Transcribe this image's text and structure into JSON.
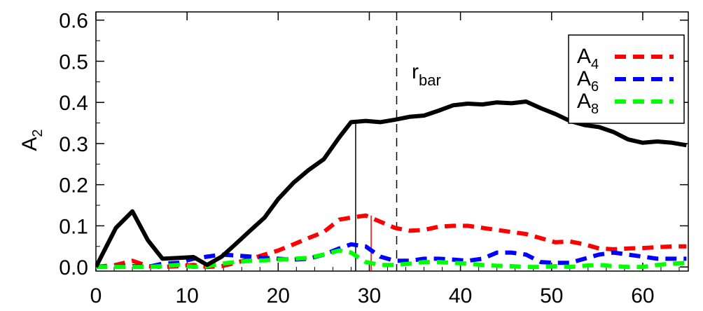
{
  "chart_data": {
    "type": "line",
    "title": "",
    "xlabel": "",
    "ylabel": {
      "main": "A",
      "sub": "2"
    },
    "xlim": [
      0,
      65
    ],
    "ylim": [
      -0.01,
      0.62
    ],
    "x_ticks": [
      0,
      10,
      20,
      30,
      40,
      50,
      60
    ],
    "x_tick_labels": [
      "0",
      "10",
      "20",
      "30",
      "40",
      "50",
      "60"
    ],
    "y_ticks": [
      0.0,
      0.1,
      0.2,
      0.3,
      0.4,
      0.5,
      0.6
    ],
    "y_tick_labels": [
      "0.0",
      "0.1",
      "0.2",
      "0.3",
      "0.4",
      "0.5",
      "0.6"
    ],
    "grid": false,
    "legend": {
      "position": "top-right",
      "entries": [
        {
          "main": "A",
          "sub": "4",
          "color": "#ff0000"
        },
        {
          "main": "A",
          "sub": "6",
          "color": "#0000ff"
        },
        {
          "main": "A",
          "sub": "8",
          "color": "#00ff00"
        }
      ]
    },
    "series": [
      {
        "key": "A2",
        "color": "#000000",
        "dash": "solid",
        "width": 6,
        "x": [
          0,
          2.2,
          4,
          5.7,
          7.3,
          9,
          10.7,
          12.2,
          13.8,
          15.3,
          17,
          18.5,
          20,
          21.7,
          23.3,
          25,
          26.7,
          28,
          29.6,
          31.2,
          32.8,
          34.4,
          36,
          37.6,
          39.2,
          40.8,
          42.4,
          44,
          45.6,
          47.2,
          48.8,
          50.4,
          52,
          53.6,
          55.2,
          56.8,
          58.4,
          60,
          61.6,
          63.2,
          64.8
        ],
        "y": [
          0.0,
          0.095,
          0.135,
          0.065,
          0.02,
          0.022,
          0.024,
          0.005,
          0.025,
          0.055,
          0.09,
          0.12,
          0.165,
          0.205,
          0.235,
          0.262,
          0.315,
          0.352,
          0.355,
          0.352,
          0.358,
          0.365,
          0.368,
          0.38,
          0.393,
          0.397,
          0.395,
          0.4,
          0.398,
          0.402,
          0.386,
          0.372,
          0.355,
          0.345,
          0.34,
          0.328,
          0.31,
          0.302,
          0.305,
          0.302,
          0.296
        ],
        "highlight_x": 28.5,
        "highlight_y": 0.355
      },
      {
        "key": "A4",
        "color": "#ff0000",
        "dash": "dashed",
        "width": 6,
        "x": [
          0,
          2.2,
          4,
          5.7,
          7.3,
          9,
          10.7,
          12.2,
          13.8,
          15.3,
          17,
          18.5,
          20,
          21.7,
          23.3,
          25,
          26.7,
          28,
          29.6,
          31.2,
          32.8,
          34.4,
          36,
          37.6,
          39.2,
          40.8,
          42.4,
          44,
          45.6,
          47.2,
          48.8,
          50.4,
          52,
          53.6,
          55.2,
          56.8,
          58.4,
          60,
          61.6,
          63.2,
          64.8
        ],
        "y": [
          0.0,
          0.005,
          0.015,
          0.002,
          0.0,
          0.002,
          0.005,
          0.0,
          0.002,
          0.01,
          0.02,
          0.03,
          0.04,
          0.055,
          0.07,
          0.085,
          0.115,
          0.12,
          0.125,
          0.11,
          0.095,
          0.088,
          0.09,
          0.098,
          0.1,
          0.1,
          0.095,
          0.09,
          0.085,
          0.08,
          0.07,
          0.06,
          0.062,
          0.055,
          0.045,
          0.043,
          0.045,
          0.046,
          0.048,
          0.05,
          0.05
        ],
        "highlight_x": 30.2,
        "highlight_y": 0.125
      },
      {
        "key": "A6",
        "color": "#0000ff",
        "dash": "dashed",
        "width": 6,
        "x": [
          0,
          2.2,
          4,
          5.7,
          7.3,
          9,
          10.7,
          12.2,
          13.8,
          15.3,
          17,
          18.5,
          20,
          21.7,
          23.3,
          25,
          26.7,
          28,
          29.6,
          31.2,
          32.8,
          34.4,
          36,
          37.6,
          39.2,
          40.8,
          42.4,
          44,
          45.6,
          47.2,
          48.8,
          50.4,
          52,
          53.6,
          55.2,
          56.8,
          58.4,
          60,
          61.6,
          63.2,
          64.8
        ],
        "y": [
          0.0,
          0.0,
          0.002,
          0.0,
          0.008,
          0.01,
          0.02,
          0.025,
          0.03,
          0.028,
          0.025,
          0.022,
          0.02,
          0.018,
          0.02,
          0.03,
          0.045,
          0.055,
          0.05,
          0.025,
          0.015,
          0.015,
          0.02,
          0.02,
          0.018,
          0.015,
          0.02,
          0.035,
          0.035,
          0.03,
          0.012,
          0.01,
          0.01,
          0.02,
          0.03,
          0.035,
          0.03,
          0.025,
          0.02,
          0.02,
          0.02
        ]
      },
      {
        "key": "A8",
        "color": "#00ff00",
        "dash": "dashed",
        "width": 6,
        "x": [
          0,
          2.2,
          4,
          5.7,
          7.3,
          9,
          10.7,
          12.2,
          13.8,
          15.3,
          17,
          18.5,
          20,
          21.7,
          23.3,
          25,
          26.7,
          28,
          29.6,
          31.2,
          32.8,
          34.4,
          36,
          37.6,
          39.2,
          40.8,
          42.4,
          44,
          45.6,
          47.2,
          48.8,
          50.4,
          52,
          53.6,
          55.2,
          56.8,
          58.4,
          60,
          61.6,
          63.2,
          64.8
        ],
        "y": [
          0.0,
          0.0,
          0.0,
          0.0,
          0.002,
          0.005,
          0.0,
          0.002,
          0.008,
          0.012,
          0.015,
          0.016,
          0.018,
          0.02,
          0.022,
          0.03,
          0.04,
          0.035,
          0.012,
          0.005,
          0.005,
          0.008,
          0.012,
          0.012,
          0.01,
          0.008,
          0.005,
          0.003,
          0.002,
          0.0,
          0.0,
          0.002,
          0.0,
          0.003,
          0.005,
          0.002,
          0.0,
          0.0,
          0.005,
          0.008,
          0.01
        ]
      }
    ],
    "annotation": {
      "main": "r",
      "sub": "bar",
      "x": 33.0
    }
  }
}
